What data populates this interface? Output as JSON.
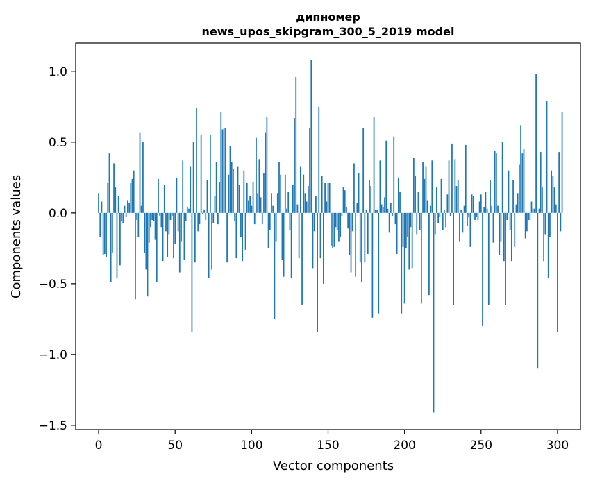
{
  "chart_data": {
    "type": "bar",
    "title_line1": "дипномер",
    "title_line2": "news_upos_skipgram_300_5_2019 model",
    "xlabel": "Vector components",
    "ylabel": "Components values",
    "xlim": [
      -15,
      315
    ],
    "ylim": [
      -1.53,
      1.2
    ],
    "xticks": [
      0,
      50,
      100,
      150,
      200,
      250,
      300
    ],
    "xtick_labels": [
      "0",
      "50",
      "100",
      "150",
      "200",
      "250",
      "300"
    ],
    "yticks": [
      -1.5,
      -1.0,
      -0.5,
      0.0,
      0.5,
      1.0
    ],
    "ytick_labels": [
      "−1.5",
      "−1.0",
      "−0.5",
      "0.0",
      "0.5",
      "1.0"
    ],
    "bar_color": "#1f77b4",
    "grid": false,
    "values": [
      0.14,
      -0.17,
      0.08,
      -0.3,
      -0.29,
      -0.31,
      0.21,
      0.42,
      -0.49,
      -0.28,
      0.35,
      0.18,
      -0.46,
      0.12,
      -0.37,
      -0.06,
      -0.07,
      0.05,
      -0.03,
      0.09,
      0.07,
      0.21,
      0.24,
      0.3,
      -0.61,
      -0.05,
      -0.17,
      0.57,
      0.05,
      0.5,
      -0.28,
      -0.4,
      -0.59,
      -0.21,
      -0.1,
      -0.05,
      -0.06,
      -0.19,
      -0.49,
      0.24,
      -0.02,
      -0.1,
      -0.34,
      0.2,
      -0.13,
      -0.31,
      -0.15,
      -0.05,
      -0.02,
      -0.32,
      -0.22,
      0.25,
      -0.13,
      -0.42,
      -0.2,
      0.37,
      -0.33,
      -0.06,
      0.04,
      0.03,
      0.33,
      -0.84,
      0.5,
      -0.35,
      0.74,
      -0.13,
      -0.08,
      0.55,
      -0.01,
      0.02,
      -0.05,
      0.23,
      -0.46,
      0.55,
      -0.4,
      -0.07,
      0.12,
      0.36,
      -0.08,
      0.22,
      0.71,
      0.59,
      0.6,
      0.6,
      -0.35,
      0.27,
      0.47,
      0.36,
      0.31,
      -0.06,
      -0.32,
      0.33,
      0.2,
      -0.17,
      -0.34,
      0.3,
      -0.26,
      0.21,
      0.09,
      0.12,
      0.05,
      0.22,
      -0.08,
      0.53,
      0.14,
      0.38,
      0.11,
      -0.08,
      0.28,
      0.57,
      0.68,
      -0.25,
      -0.12,
      0.14,
      0.05,
      -0.75,
      -0.2,
      0.14,
      0.36,
      0.27,
      -0.33,
      -0.45,
      0.27,
      0.03,
      0.15,
      -0.12,
      -0.46,
      0.2,
      0.67,
      0.96,
      0.06,
      -0.32,
      0.33,
      -0.65,
      0.27,
      0.14,
      0.08,
      0.19,
      0.6,
      1.08,
      -0.39,
      -0.13,
      0.12,
      -0.84,
      0.75,
      -0.32,
      0.26,
      -0.5,
      0.21,
      0.08,
      0.21,
      0.21,
      -0.23,
      -0.25,
      -0.24,
      -0.1,
      -0.12,
      -0.2,
      -0.17,
      -0.02,
      0.18,
      0.16,
      0.04,
      -0.11,
      -0.3,
      -0.42,
      -0.13,
      0.35,
      -0.45,
      0.07,
      0.28,
      -0.35,
      -0.49,
      0.6,
      -0.35,
      0.02,
      -0.29,
      0.23,
      0.19,
      -0.74,
      0.68,
      0.02,
      0.02,
      -0.71,
      0.37,
      0.06,
      0.04,
      0.11,
      0.51,
      0.03,
      -0.14,
      0.07,
      -0.02,
      0.54,
      -0.08,
      -0.29,
      0.25,
      0.15,
      -0.71,
      -0.24,
      -0.64,
      -0.25,
      -0.17,
      -0.4,
      -0.1,
      -0.39,
      0.39,
      0.26,
      -0.15,
      0.15,
      -0.12,
      -0.64,
      0.36,
      0.24,
      0.33,
      0.09,
      -0.58,
      0.05,
      0.37,
      -1.41,
      -0.15,
      0.18,
      -0.07,
      -0.03,
      0.24,
      -0.12,
      0.02,
      -0.1,
      0.13,
      0.37,
      -0.02,
      0.49,
      -0.65,
      0.38,
      0.19,
      0.23,
      -0.2,
      0.02,
      -0.14,
      0.05,
      0.48,
      -0.09,
      -0.03,
      -0.24,
      0.13,
      0.12,
      -0.05,
      -0.03,
      -0.05,
      0.08,
      0.13,
      -0.8,
      0.04,
      0.15,
      0.03,
      -0.65,
      0.23,
      0.05,
      -0.21,
      0.44,
      0.42,
      0.05,
      -0.3,
      -0.2,
      0.5,
      -0.34,
      -0.65,
      -0.05,
      0.3,
      -0.12,
      -0.34,
      0.23,
      -0.24,
      0.06,
      0.14,
      0.34,
      0.62,
      0.42,
      0.45,
      -0.18,
      -0.13,
      -0.05,
      -0.05,
      0.08,
      0.03,
      0.03,
      0.98,
      -1.1,
      0.03,
      0.43,
      0.18,
      -0.34,
      -0.15,
      0.79,
      -0.46,
      -0.17,
      0.3,
      0.26,
      0.18,
      0.06,
      -0.84,
      0.43,
      -0.13,
      0.71
    ]
  }
}
